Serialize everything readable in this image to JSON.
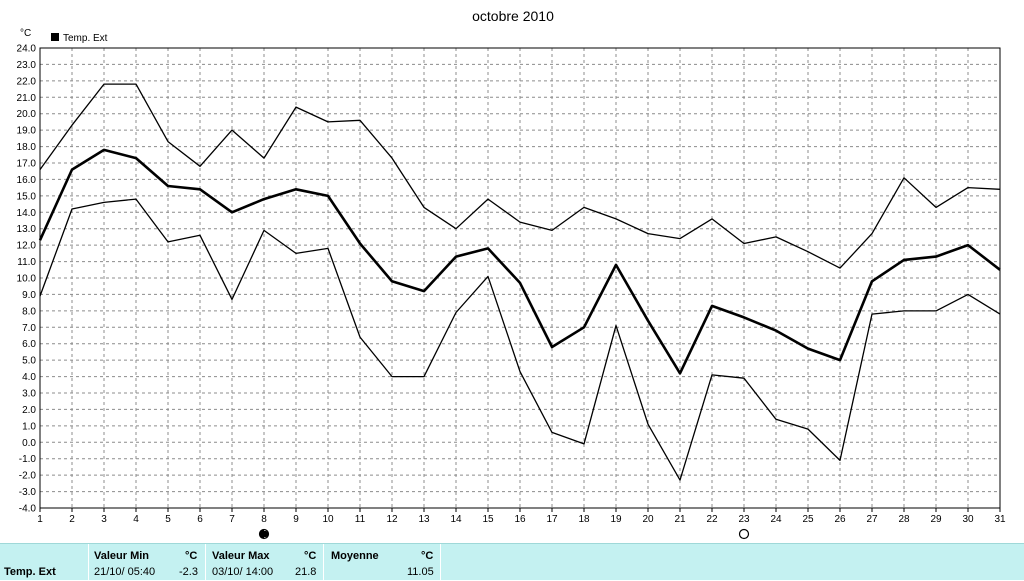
{
  "chart_data": {
    "type": "line",
    "title": "octobre 2010",
    "ylabel": "°C",
    "legend": {
      "label": "Temp. Ext",
      "position": "top-left"
    },
    "ylim": [
      -4.0,
      24.0
    ],
    "yticks": [
      "24.0",
      "23.0",
      "22.0",
      "21.0",
      "20.0",
      "19.0",
      "18.0",
      "17.0",
      "16.0",
      "15.0",
      "14.0",
      "13.0",
      "12.0",
      "11.0",
      "10.0",
      "9.0",
      "8.0",
      "7.0",
      "6.0",
      "5.0",
      "4.0",
      "3.0",
      "2.0",
      "1.0",
      "0.0",
      "-1.0",
      "-2.0",
      "-3.0",
      "-4.0"
    ],
    "x": [
      "1",
      "2",
      "3",
      "4",
      "5",
      "6",
      "7",
      "8",
      "9",
      "10",
      "11",
      "12",
      "13",
      "14",
      "15",
      "16",
      "17",
      "18",
      "19",
      "20",
      "21",
      "22",
      "23",
      "24",
      "25",
      "26",
      "27",
      "28",
      "29",
      "30",
      "31"
    ],
    "grid": true,
    "series": [
      {
        "role": "max",
        "values": [
          16.6,
          19.3,
          21.8,
          21.8,
          18.3,
          16.8,
          19.0,
          17.3,
          20.4,
          19.5,
          19.6,
          17.3,
          14.3,
          13.0,
          14.8,
          13.4,
          12.9,
          14.3,
          13.6,
          12.7,
          12.4,
          13.6,
          12.1,
          12.5,
          11.6,
          10.6,
          12.7,
          16.1,
          14.3,
          15.5,
          15.4
        ]
      },
      {
        "role": "mean",
        "values": [
          12.3,
          16.6,
          17.8,
          17.3,
          15.6,
          15.4,
          14.0,
          14.8,
          15.4,
          15.0,
          12.1,
          9.8,
          9.2,
          11.3,
          11.8,
          9.7,
          5.8,
          7.0,
          10.8,
          7.4,
          4.2,
          8.3,
          7.6,
          6.8,
          5.7,
          5.0,
          9.8,
          11.1,
          11.3,
          12.0,
          10.5
        ]
      },
      {
        "role": "min",
        "values": [
          8.9,
          14.2,
          14.6,
          14.8,
          12.2,
          12.6,
          8.7,
          12.9,
          11.5,
          11.8,
          6.4,
          4.0,
          4.0,
          7.9,
          10.1,
          4.3,
          0.6,
          -0.1,
          7.1,
          1.1,
          -2.3,
          4.1,
          3.9,
          1.4,
          0.8,
          -1.1,
          7.8,
          8.0,
          8.0,
          9.0,
          7.8
        ]
      }
    ],
    "moon_phases": [
      {
        "day": "8",
        "phase": "first-quarter-icon"
      },
      {
        "day": "23",
        "phase": "full-moon-icon"
      }
    ]
  },
  "stats": {
    "series_label": "Temp. Ext",
    "min": {
      "header": "Valeur Min",
      "unit": "°C",
      "datetime": "21/10/  05:40",
      "value": "-2.3"
    },
    "max": {
      "header": "Valeur Max",
      "unit": "°C",
      "datetime": "03/10/  14:00",
      "value": "21.8"
    },
    "mean": {
      "header": "Moyenne",
      "unit": "°C",
      "value": "11.05"
    }
  }
}
